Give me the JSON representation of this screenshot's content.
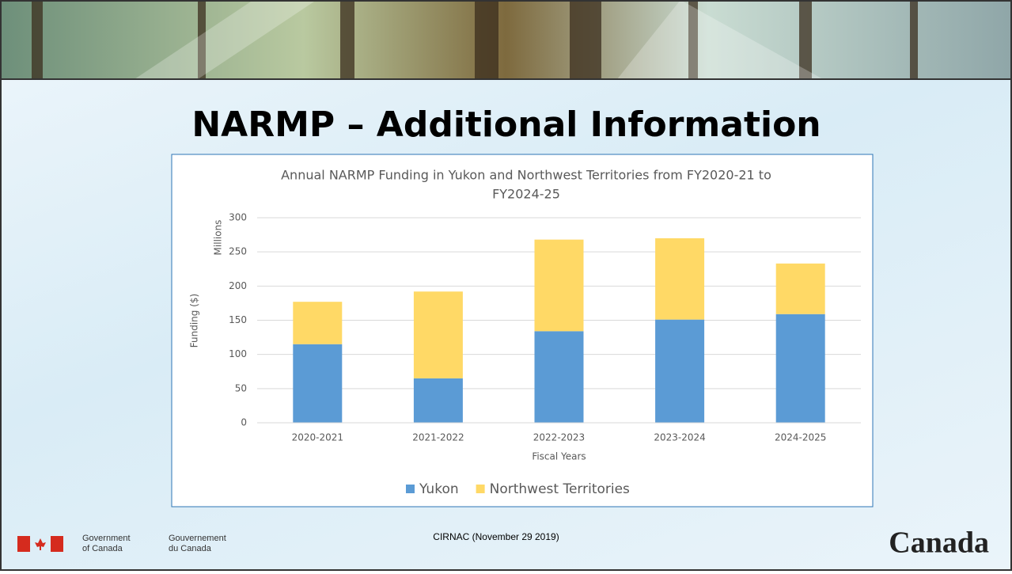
{
  "header": {
    "title": "NARMP – Additional Information"
  },
  "footer": {
    "gov_en": [
      "Government",
      "of Canada"
    ],
    "gov_fr": [
      "Gouvernement",
      "du Canada"
    ],
    "note": "CIRNAC (November 29 2019)",
    "wordmark": "Canada"
  },
  "chart_data": {
    "type": "stacked_bar",
    "title": [
      "Annual NARMP Funding in Yukon and Northwest Territories from FY2020-21 to",
      "FY2024-25"
    ],
    "y_label": "Funding ($)",
    "y_unit": "Millions",
    "x_label": "Fiscal Years",
    "categories": [
      "2020-2021",
      "2021-2022",
      "2022-2023",
      "2023-2024",
      "2024-2025"
    ],
    "series": [
      {
        "name": "Yukon",
        "color": "#5b9bd5",
        "values": [
          115,
          65,
          134,
          151,
          159
        ]
      },
      {
        "name": "Northwest Territories",
        "color": "#ffd966",
        "values": [
          62,
          127,
          134,
          119,
          74
        ]
      }
    ],
    "ylim": [
      0,
      300
    ],
    "yticks": [
      0,
      50,
      100,
      150,
      200,
      250,
      300
    ],
    "grid": true,
    "legend": "bottom"
  }
}
